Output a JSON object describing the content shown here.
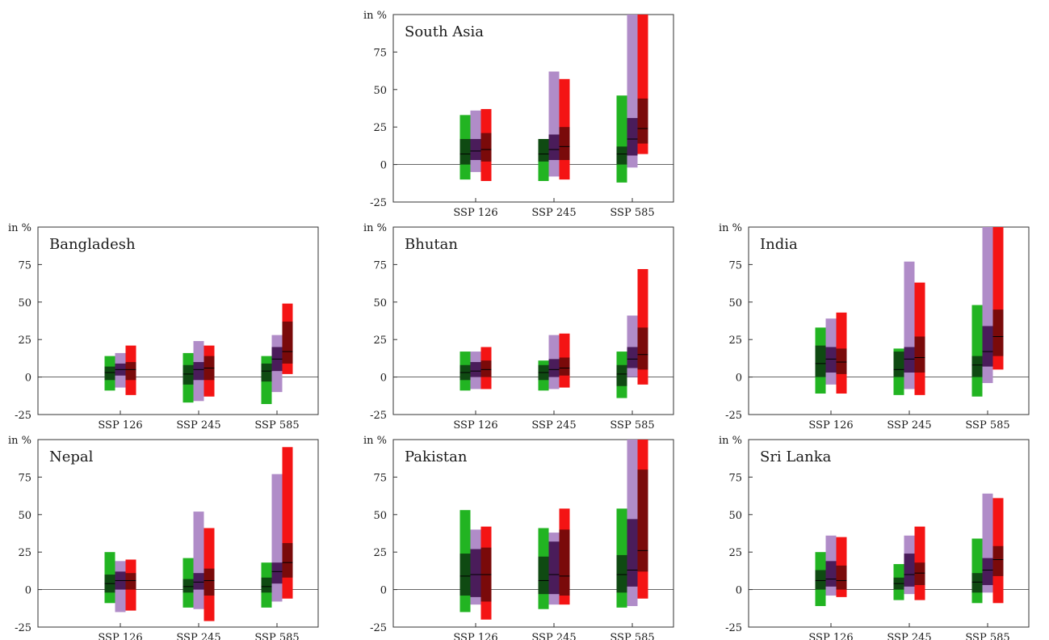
{
  "colors": {
    "green_light": "#22b422",
    "green_dark": "#0f4a12",
    "purple_light": "#b08cc8",
    "purple_dark": "#4a1c5a",
    "red_light": "#f41414",
    "red_dark": "#7a0a0a",
    "axis": "#333333"
  },
  "chart_data": [
    {
      "type": "bar",
      "title": "South Asia",
      "ylabel": "in %",
      "ylim": [
        -25,
        100
      ],
      "yticks": [
        -25,
        0,
        25,
        50,
        75
      ],
      "categories": [
        "SSP 126",
        "SSP 245",
        "SSP 585"
      ],
      "series": [
        {
          "color_key": "green",
          "values": [
            {
              "min": -10,
              "q1": 0,
              "median": 7,
              "q3": 17,
              "max": 33
            },
            {
              "min": -11,
              "q1": 2,
              "median": 7,
              "q3": 17,
              "max": 17
            },
            {
              "min": -12,
              "q1": 0,
              "median": 7,
              "q3": 12,
              "max": 46
            }
          ]
        },
        {
          "color_key": "purple",
          "values": [
            {
              "min": -5,
              "q1": 3,
              "median": 9,
              "q3": 17,
              "max": 36
            },
            {
              "min": -8,
              "q1": 3,
              "median": 10,
              "q3": 20,
              "max": 62
            },
            {
              "min": -2,
              "q1": 6,
              "median": 17,
              "q3": 31,
              "max": 100
            }
          ]
        },
        {
          "color_key": "red",
          "values": [
            {
              "min": -11,
              "q1": 2,
              "median": 10,
              "q3": 21,
              "max": 37
            },
            {
              "min": -10,
              "q1": 3,
              "median": 12,
              "q3": 25,
              "max": 57
            },
            {
              "min": 7,
              "q1": 14,
              "median": 24,
              "q3": 44,
              "max": 100
            }
          ]
        }
      ]
    },
    {
      "type": "bar",
      "title": "Bangladesh",
      "ylabel": "in %",
      "ylim": [
        -25,
        100
      ],
      "yticks": [
        -25,
        0,
        25,
        50,
        75
      ],
      "categories": [
        "SSP 126",
        "SSP 245",
        "SSP 585"
      ],
      "series": [
        {
          "color_key": "green",
          "values": [
            {
              "min": -9,
              "q1": -2,
              "median": 3,
              "q3": 7,
              "max": 14
            },
            {
              "min": -17,
              "q1": -5,
              "median": 2,
              "q3": 8,
              "max": 16
            },
            {
              "min": -18,
              "q1": -3,
              "median": 4,
              "q3": 9,
              "max": 14
            }
          ]
        },
        {
          "color_key": "purple",
          "values": [
            {
              "min": -7,
              "q1": 1,
              "median": 5,
              "q3": 9,
              "max": 16
            },
            {
              "min": -16,
              "q1": -2,
              "median": 5,
              "q3": 10,
              "max": 24
            },
            {
              "min": -10,
              "q1": 4,
              "median": 12,
              "q3": 20,
              "max": 28
            }
          ]
        },
        {
          "color_key": "red",
          "values": [
            {
              "min": -12,
              "q1": -2,
              "median": 5,
              "q3": 10,
              "max": 21
            },
            {
              "min": -13,
              "q1": -2,
              "median": 6,
              "q3": 14,
              "max": 21
            },
            {
              "min": 2,
              "q1": 9,
              "median": 17,
              "q3": 37,
              "max": 49
            }
          ]
        }
      ]
    },
    {
      "type": "bar",
      "title": "Bhutan",
      "ylabel": "in %",
      "ylim": [
        -25,
        100
      ],
      "yticks": [
        -25,
        0,
        25,
        50,
        75
      ],
      "categories": [
        "SSP 126",
        "SSP 245",
        "SSP 585"
      ],
      "series": [
        {
          "color_key": "green",
          "values": [
            {
              "min": -9,
              "q1": -2,
              "median": 3,
              "q3": 8,
              "max": 17
            },
            {
              "min": -9,
              "q1": -2,
              "median": 3,
              "q3": 8,
              "max": 11
            },
            {
              "min": -14,
              "q1": -6,
              "median": 2,
              "q3": 8,
              "max": 17
            }
          ]
        },
        {
          "color_key": "purple",
          "values": [
            {
              "min": -8,
              "q1": 0,
              "median": 4,
              "q3": 10,
              "max": 17
            },
            {
              "min": -8,
              "q1": 0,
              "median": 5,
              "q3": 12,
              "max": 28
            },
            {
              "min": 0,
              "q1": 6,
              "median": 12,
              "q3": 20,
              "max": 41
            }
          ]
        },
        {
          "color_key": "red",
          "values": [
            {
              "min": -8,
              "q1": 0,
              "median": 5,
              "q3": 11,
              "max": 20
            },
            {
              "min": -7,
              "q1": 1,
              "median": 6,
              "q3": 13,
              "max": 29
            },
            {
              "min": -5,
              "q1": 5,
              "median": 15,
              "q3": 33,
              "max": 72
            }
          ]
        }
      ]
    },
    {
      "type": "bar",
      "title": "India",
      "ylabel": "in %",
      "ylim": [
        -25,
        100
      ],
      "yticks": [
        -25,
        0,
        25,
        50,
        75
      ],
      "categories": [
        "SSP 126",
        "SSP 245",
        "SSP 585"
      ],
      "series": [
        {
          "color_key": "green",
          "values": [
            {
              "min": -11,
              "q1": 0,
              "median": 9,
              "q3": 21,
              "max": 33
            },
            {
              "min": -12,
              "q1": 0,
              "median": 5,
              "q3": 17,
              "max": 19
            },
            {
              "min": -13,
              "q1": 0,
              "median": 8,
              "q3": 14,
              "max": 48
            }
          ]
        },
        {
          "color_key": "purple",
          "values": [
            {
              "min": -5,
              "q1": 3,
              "median": 12,
              "q3": 20,
              "max": 39
            },
            {
              "min": -8,
              "q1": 3,
              "median": 12,
              "q3": 20,
              "max": 77
            },
            {
              "min": -4,
              "q1": 7,
              "median": 17,
              "q3": 34,
              "max": 100
            }
          ]
        },
        {
          "color_key": "red",
          "values": [
            {
              "min": -11,
              "q1": 2,
              "median": 10,
              "q3": 19,
              "max": 43
            },
            {
              "min": -12,
              "q1": 3,
              "median": 13,
              "q3": 27,
              "max": 63
            },
            {
              "min": 5,
              "q1": 14,
              "median": 27,
              "q3": 45,
              "max": 100
            }
          ]
        }
      ]
    },
    {
      "type": "bar",
      "title": "Nepal",
      "ylabel": "in %",
      "ylim": [
        -25,
        100
      ],
      "yticks": [
        -25,
        0,
        25,
        50,
        75
      ],
      "categories": [
        "SSP 126",
        "SSP 245",
        "SSP 585"
      ],
      "series": [
        {
          "color_key": "green",
          "values": [
            {
              "min": -9,
              "q1": -2,
              "median": 4,
              "q3": 10,
              "max": 25
            },
            {
              "min": -12,
              "q1": -2,
              "median": 2,
              "q3": 7,
              "max": 21
            },
            {
              "min": -12,
              "q1": -2,
              "median": 2,
              "q3": 8,
              "max": 18
            }
          ]
        },
        {
          "color_key": "purple",
          "values": [
            {
              "min": -15,
              "q1": 0,
              "median": 6,
              "q3": 12,
              "max": 19
            },
            {
              "min": -13,
              "q1": 0,
              "median": 5,
              "q3": 11,
              "max": 52
            },
            {
              "min": -8,
              "q1": 4,
              "median": 12,
              "q3": 18,
              "max": 77
            }
          ]
        },
        {
          "color_key": "red",
          "values": [
            {
              "min": -14,
              "q1": 0,
              "median": 6,
              "q3": 11,
              "max": 20
            },
            {
              "min": -21,
              "q1": -4,
              "median": 6,
              "q3": 14,
              "max": 41
            },
            {
              "min": -6,
              "q1": 8,
              "median": 18,
              "q3": 31,
              "max": 95
            }
          ]
        }
      ]
    },
    {
      "type": "bar",
      "title": "Pakistan",
      "ylabel": "in %",
      "ylim": [
        -25,
        100
      ],
      "yticks": [
        -25,
        0,
        25,
        50,
        75
      ],
      "categories": [
        "SSP 126",
        "SSP 245",
        "SSP 585"
      ],
      "series": [
        {
          "color_key": "green",
          "values": [
            {
              "min": -15,
              "q1": -4,
              "median": 9,
              "q3": 24,
              "max": 53
            },
            {
              "min": -13,
              "q1": -3,
              "median": 6,
              "q3": 22,
              "max": 41
            },
            {
              "min": -12,
              "q1": -2,
              "median": 10,
              "q3": 23,
              "max": 54
            }
          ]
        },
        {
          "color_key": "purple",
          "values": [
            {
              "min": -10,
              "q1": -5,
              "median": 10,
              "q3": 27,
              "max": 40
            },
            {
              "min": -10,
              "q1": -3,
              "median": 10,
              "q3": 32,
              "max": 38
            },
            {
              "min": -11,
              "q1": 2,
              "median": 13,
              "q3": 47,
              "max": 100
            }
          ]
        },
        {
          "color_key": "red",
          "values": [
            {
              "min": -20,
              "q1": -8,
              "median": 10,
              "q3": 28,
              "max": 42
            },
            {
              "min": -10,
              "q1": -4,
              "median": 9,
              "q3": 40,
              "max": 54
            },
            {
              "min": -6,
              "q1": 12,
              "median": 26,
              "q3": 80,
              "max": 100
            }
          ]
        }
      ]
    },
    {
      "type": "bar",
      "title": "Sri Lanka",
      "ylabel": "in %",
      "ylim": [
        -25,
        100
      ],
      "yticks": [
        -25,
        0,
        25,
        50,
        75
      ],
      "categories": [
        "SSP 126",
        "SSP 245",
        "SSP 585"
      ],
      "series": [
        {
          "color_key": "green",
          "values": [
            {
              "min": -11,
              "q1": 0,
              "median": 6,
              "q3": 13,
              "max": 25
            },
            {
              "min": -7,
              "q1": 0,
              "median": 4,
              "q3": 8,
              "max": 17
            },
            {
              "min": -9,
              "q1": -2,
              "median": 5,
              "q3": 11,
              "max": 34
            }
          ]
        },
        {
          "color_key": "purple",
          "values": [
            {
              "min": -4,
              "q1": 2,
              "median": 7,
              "q3": 19,
              "max": 36
            },
            {
              "min": -3,
              "q1": 2,
              "median": 10,
              "q3": 24,
              "max": 36
            },
            {
              "min": -2,
              "q1": 3,
              "median": 13,
              "q3": 21,
              "max": 64
            }
          ]
        },
        {
          "color_key": "red",
          "values": [
            {
              "min": -5,
              "q1": 0,
              "median": 6,
              "q3": 16,
              "max": 35
            },
            {
              "min": -7,
              "q1": 3,
              "median": 11,
              "q3": 18,
              "max": 42
            },
            {
              "min": -9,
              "q1": 9,
              "median": 20,
              "q3": 29,
              "max": 61
            }
          ]
        }
      ]
    }
  ]
}
